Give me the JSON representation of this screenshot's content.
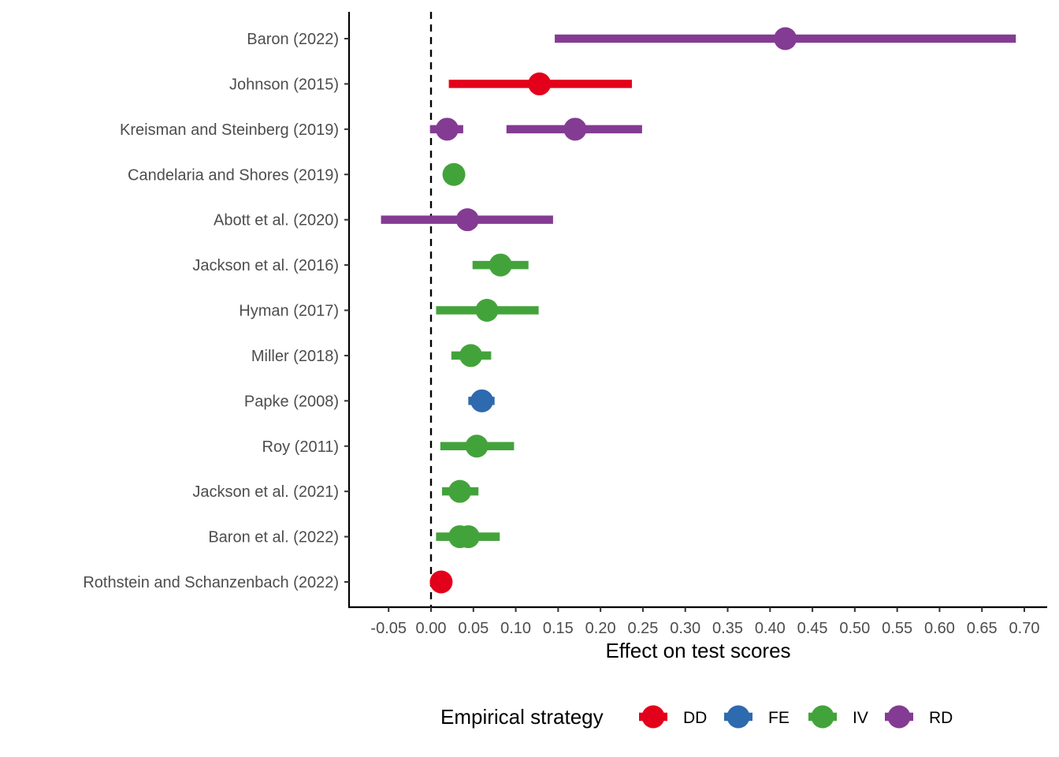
{
  "chart_data": {
    "type": "forest",
    "title": "",
    "xlabel": "Effect on test scores",
    "ylabel": "",
    "xlim": [
      -0.097,
      0.727
    ],
    "xticks": [
      "-0.05",
      "0.00",
      "0.05",
      "0.10",
      "0.15",
      "0.20",
      "0.25",
      "0.30",
      "0.35",
      "0.40",
      "0.45",
      "0.50",
      "0.55",
      "0.60",
      "0.65",
      "0.70"
    ],
    "xtick_values": [
      -0.05,
      0.0,
      0.05,
      0.1,
      0.15,
      0.2,
      0.25,
      0.3,
      0.35,
      0.4,
      0.45,
      0.5,
      0.55,
      0.6,
      0.65,
      0.7
    ],
    "reference_line": 0.0,
    "categories": [
      "Baron (2022)",
      "Johnson (2015)",
      "Kreisman and Steinberg (2019)",
      "Candelaria and Shores (2019)",
      "Abott et al. (2020)",
      "Jackson et al. (2016)",
      "Hyman (2017)",
      "Miller (2018)",
      "Papke (2008)",
      "Roy (2011)",
      "Jackson et al. (2021)",
      "Baron et al. (2022)",
      "Rothstein and Schanzenbach (2022)"
    ],
    "estimates": [
      {
        "study": "Baron (2022)",
        "strategy": "RD",
        "estimate": 0.418,
        "lower": 0.146,
        "upper": 0.69
      },
      {
        "study": "Johnson (2015)",
        "strategy": "DD",
        "estimate": 0.128,
        "lower": 0.021,
        "upper": 0.237
      },
      {
        "study": "Kreisman and Steinberg (2019)",
        "strategy": "RD",
        "estimate": 0.019,
        "lower": -0.001,
        "upper": 0.038
      },
      {
        "study": "Kreisman and Steinberg (2019)",
        "strategy": "RD",
        "estimate": 0.17,
        "lower": 0.089,
        "upper": 0.249
      },
      {
        "study": "Candelaria and Shores (2019)",
        "strategy": "IV",
        "estimate": 0.027,
        "lower": 0.027,
        "upper": 0.027
      },
      {
        "study": "Abott et al. (2020)",
        "strategy": "RD",
        "estimate": 0.043,
        "lower": -0.059,
        "upper": 0.144
      },
      {
        "study": "Jackson et al. (2016)",
        "strategy": "IV",
        "estimate": 0.082,
        "lower": 0.049,
        "upper": 0.115
      },
      {
        "study": "Hyman (2017)",
        "strategy": "IV",
        "estimate": 0.066,
        "lower": 0.006,
        "upper": 0.127
      },
      {
        "study": "Miller (2018)",
        "strategy": "IV",
        "estimate": 0.047,
        "lower": 0.024,
        "upper": 0.071
      },
      {
        "study": "Papke (2008)",
        "strategy": "FE",
        "estimate": 0.06,
        "lower": 0.044,
        "upper": 0.075
      },
      {
        "study": "Roy (2011)",
        "strategy": "IV",
        "estimate": 0.054,
        "lower": 0.011,
        "upper": 0.098
      },
      {
        "study": "Jackson et al. (2021)",
        "strategy": "IV",
        "estimate": 0.034,
        "lower": 0.013,
        "upper": 0.056
      },
      {
        "study": "Baron et al. (2022)",
        "strategy": "IV",
        "estimate": 0.034,
        "lower": 0.006,
        "upper": 0.081
      },
      {
        "study": "Baron et al. (2022)",
        "strategy": "IV",
        "estimate": 0.044,
        "lower": 0.006,
        "upper": 0.081
      },
      {
        "study": "Rothstein and Schanzenbach (2022)",
        "strategy": "DD",
        "estimate": 0.012,
        "lower": 0.012,
        "upper": 0.012
      }
    ],
    "legend": {
      "title": "Empirical strategy",
      "position": "bottom",
      "entries": [
        {
          "label": "DD",
          "color": "#E3001B"
        },
        {
          "label": "FE",
          "color": "#2D6AAE"
        },
        {
          "label": "IV",
          "color": "#43A33B"
        },
        {
          "label": "RD",
          "color": "#843B93"
        }
      ]
    },
    "grid": false
  }
}
